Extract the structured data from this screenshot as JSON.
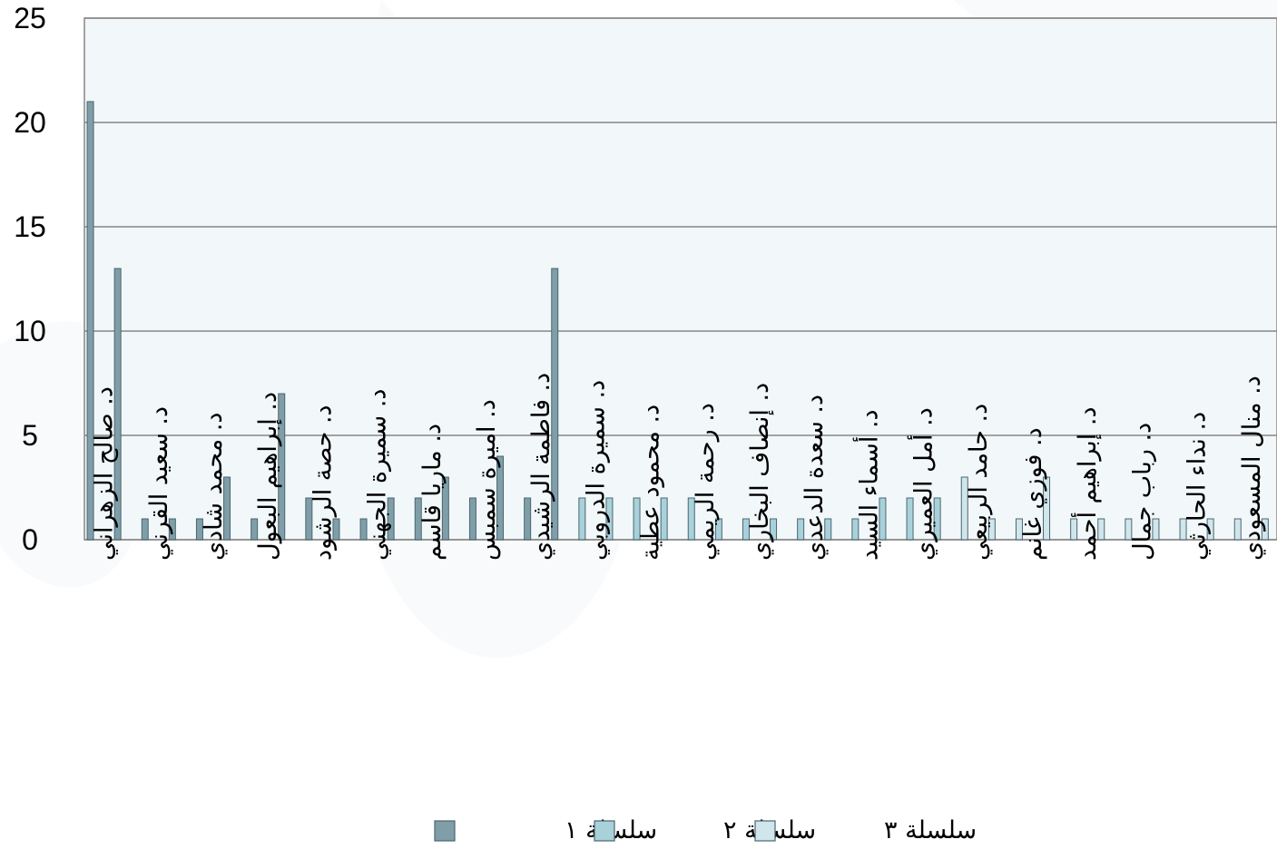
{
  "chart_data": {
    "type": "bar",
    "ylim": [
      0,
      25
    ],
    "yticks": [
      "0",
      "5",
      "10",
      "15",
      "20",
      "25"
    ],
    "grid": true,
    "legend_position": "bottom",
    "categories": [
      "د. صالح الزهراني",
      "",
      "د. سعيد القرني",
      "",
      "د. محمد شادي",
      "",
      "د. إبراهيم البعول",
      "",
      "د. حصة الرشود",
      "",
      "د. سميرة الجهني",
      "",
      "د. ماريا قاسم",
      "",
      "د. اميرة سمبس",
      "",
      "د. فاطمة الرشيدي",
      "",
      "د. سميرة الدروبي",
      "",
      "د. محمود عطية",
      "",
      "د. رحمة الريمي",
      "",
      "د. إنصاف البخاري",
      "",
      "د. سعدة الدعدي",
      "",
      "د. أسماء السيد",
      "",
      "د. أمل العميري",
      "",
      "د. حامد الربيعي",
      "",
      "د. فوزي غانم",
      "",
      "د. إبراهيم أحمد",
      "",
      "د. رباب جمال",
      "",
      "د. نداء الحارثي",
      "",
      "د. منال المسعودي",
      ""
    ],
    "series": [
      {
        "name": "سلسلة ١",
        "color": "#7f9ea8",
        "values": [
          21,
          13,
          1,
          1,
          1,
          3,
          1,
          7,
          2,
          1,
          1,
          2,
          2,
          3,
          2,
          4,
          2,
          13,
          null,
          null,
          null,
          null,
          null,
          null,
          null,
          null,
          null,
          null,
          null,
          null,
          null,
          null,
          null,
          null,
          null,
          null,
          null,
          null,
          null,
          null,
          null,
          null,
          null,
          null
        ]
      },
      {
        "name": "سلسلة ٢",
        "color": "#a9d1da",
        "values": [
          null,
          null,
          null,
          null,
          null,
          null,
          null,
          null,
          null,
          null,
          null,
          null,
          null,
          null,
          null,
          null,
          null,
          null,
          2,
          2,
          2,
          2,
          2,
          1,
          1,
          1,
          1,
          1,
          1,
          2,
          2,
          2,
          null,
          null,
          null,
          null,
          null,
          null,
          null,
          null,
          null,
          null,
          null,
          null
        ]
      },
      {
        "name": "سلسلة ٣",
        "color": "#d0e6ec",
        "values": [
          null,
          null,
          null,
          null,
          null,
          null,
          null,
          null,
          null,
          null,
          null,
          null,
          null,
          null,
          null,
          null,
          null,
          null,
          null,
          null,
          null,
          null,
          null,
          null,
          null,
          null,
          null,
          null,
          null,
          null,
          null,
          null,
          3,
          1,
          1,
          3,
          1,
          1,
          1,
          1,
          1,
          1,
          1,
          1
        ]
      }
    ]
  },
  "colors": {
    "plot_background": "#f2f8fa",
    "gridline": "#868686",
    "bar_edge": "#4a6670"
  }
}
